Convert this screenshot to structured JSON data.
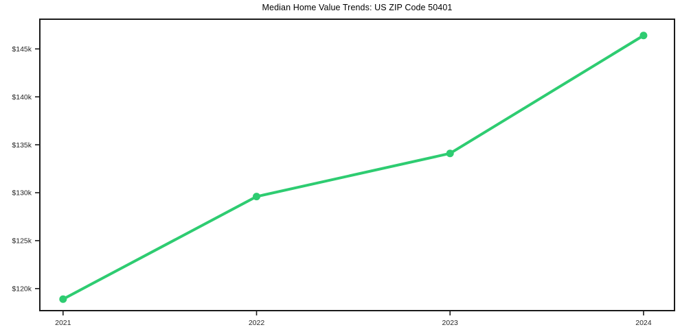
{
  "chart_data": {
    "type": "line",
    "title": "Median Home Value Trends: US ZIP Code 50401",
    "x": [
      2021,
      2022,
      2023,
      2024
    ],
    "values": [
      118.9,
      129.6,
      134.1,
      146.4
    ],
    "y_unit": "thousand USD",
    "xlabel": "",
    "ylabel": "",
    "xlim": [
      2020.88,
      2024.16
    ],
    "ylim": [
      117.7,
      148.1
    ],
    "xticks": [
      {
        "value": 2021,
        "label": "2021"
      },
      {
        "value": 2022,
        "label": "2022"
      },
      {
        "value": 2023,
        "label": "2023"
      },
      {
        "value": 2024,
        "label": "2024"
      }
    ],
    "yticks": [
      {
        "value": 120,
        "label": "$120k"
      },
      {
        "value": 125,
        "label": "$125k"
      },
      {
        "value": 130,
        "label": "$130k"
      },
      {
        "value": 135,
        "label": "$135k"
      },
      {
        "value": 140,
        "label": "$140k"
      },
      {
        "value": 145,
        "label": "$145k"
      }
    ],
    "grid": false,
    "legend": false,
    "line_color": "#2ecc71",
    "marker": "circle",
    "axis_color": "#1a1a1a",
    "background_color": "#ffffff"
  }
}
